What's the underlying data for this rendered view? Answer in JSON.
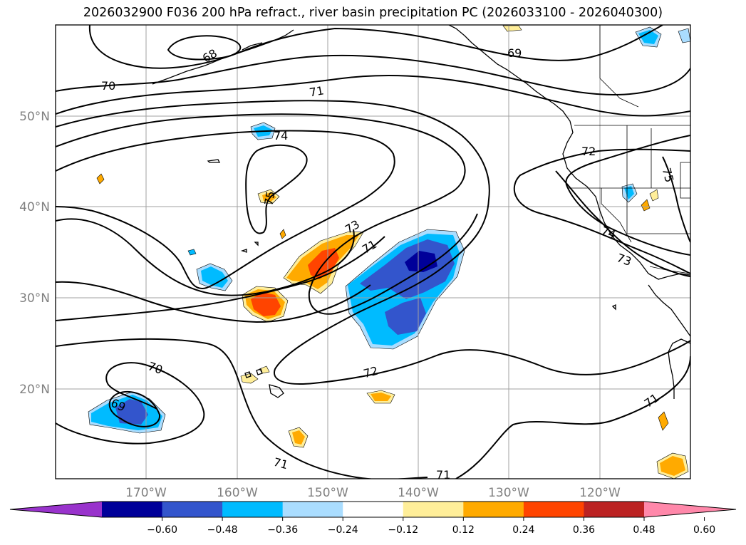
{
  "title": "2026032900 F036 200 hPa refract., river basin precipitation PC (2026033100 - 2026040300)",
  "lat_labels": [
    "50°N",
    "40°N",
    "30°N",
    "20°N"
  ],
  "lon_labels": [
    "170°W",
    "160°W",
    "150°W",
    "140°W",
    "130°W",
    "120°W"
  ],
  "contour_labels": [
    "68",
    "69",
    "70",
    "71",
    "72",
    "73",
    "74",
    "75"
  ],
  "colorbar": {
    "colors": [
      "#9933cc",
      "#000099",
      "#3355cc",
      "#00bbff",
      "#aaddff",
      "#ffffff",
      "#ffee99",
      "#ffaa00",
      "#ff4400",
      "#bb2222",
      "#ff88aa"
    ],
    "ticks": [
      "−0.60",
      "−0.48",
      "−0.36",
      "−0.24",
      "−0.12",
      "0.12",
      "0.24",
      "0.36",
      "0.48",
      "0.60"
    ]
  }
}
